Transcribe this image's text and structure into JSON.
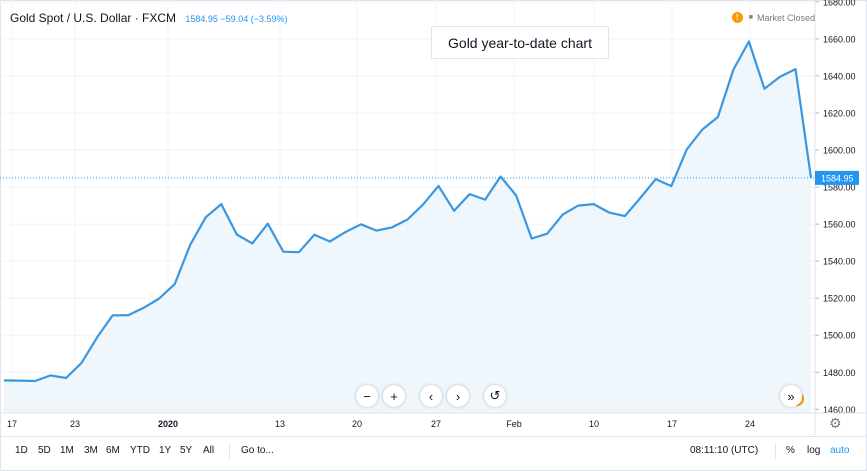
{
  "header": {
    "symbol_title": "Gold Spot / U.S. Dollar · FXCM",
    "quote": "1584.95 −59.04 (−3.59%)",
    "market_status": "Market Closed",
    "market_status_icon": "exclamation-icon"
  },
  "caption": "Gold year-to-date chart",
  "toolbar": {
    "ranges": [
      "1D",
      "5D",
      "1M",
      "3M",
      "6M",
      "YTD",
      "1Y",
      "5Y",
      "All"
    ],
    "goto_label": "Go to...",
    "clock": "08:11:10 (UTC)",
    "percent_label": "%",
    "log_label": "log",
    "auto_label": "auto"
  },
  "nav_buttons": [
    {
      "icon": "minus-icon",
      "glyph": "−"
    },
    {
      "icon": "plus-icon",
      "glyph": "+"
    },
    {
      "icon": "chevron-left-icon",
      "glyph": "‹"
    },
    {
      "icon": "chevron-right-icon",
      "glyph": "›"
    },
    {
      "icon": "reset-icon",
      "glyph": "↺"
    },
    {
      "icon": "scroll-to-end-icon",
      "glyph": "»"
    }
  ],
  "colors": {
    "line": "#3a97e0",
    "fill": "#e8f3fc",
    "last_price_tag": "#2196f3",
    "accent": "#2196f3"
  },
  "chart_data": {
    "type": "area",
    "title": "Gold Spot / U.S. Dollar · FXCM",
    "x_tick_labels": [
      "17",
      "23",
      "2020",
      "13",
      "20",
      "27",
      "Feb",
      "10",
      "17",
      "24"
    ],
    "y_tick_labels": [
      "1460.00",
      "1480.00",
      "1500.00",
      "1520.00",
      "1540.00",
      "1560.00",
      "1580.00",
      "1600.00",
      "1620.00",
      "1640.00",
      "1660.00",
      "1680.00"
    ],
    "ylim": [
      1458,
      1681
    ],
    "last_value_label": "1584.95",
    "grid": true,
    "series": [
      {
        "values": [
          1475.6,
          1475.5,
          1475.3,
          1478.3,
          1476.9,
          1485.1,
          1498.8,
          1510.7,
          1510.8,
          1514.8,
          1519.8,
          1527.6,
          1548.8,
          1563.7,
          1570.8,
          1554.4,
          1549.6,
          1560.2,
          1545.1,
          1544.8,
          1554.3,
          1550.6,
          1555.7,
          1559.9,
          1556.5,
          1558.2,
          1562.5,
          1570.5,
          1580.6,
          1567.2,
          1576.2,
          1573.2,
          1585.7,
          1575.5,
          1552.2,
          1554.8,
          1565.1,
          1570.0,
          1570.8,
          1566.2,
          1564.3,
          1574.1,
          1584.3,
          1580.5,
          1600.4,
          1611.1,
          1617.8,
          1643.4,
          1658.6,
          1633.1,
          1639.6,
          1643.7,
          1584.95
        ]
      }
    ]
  }
}
